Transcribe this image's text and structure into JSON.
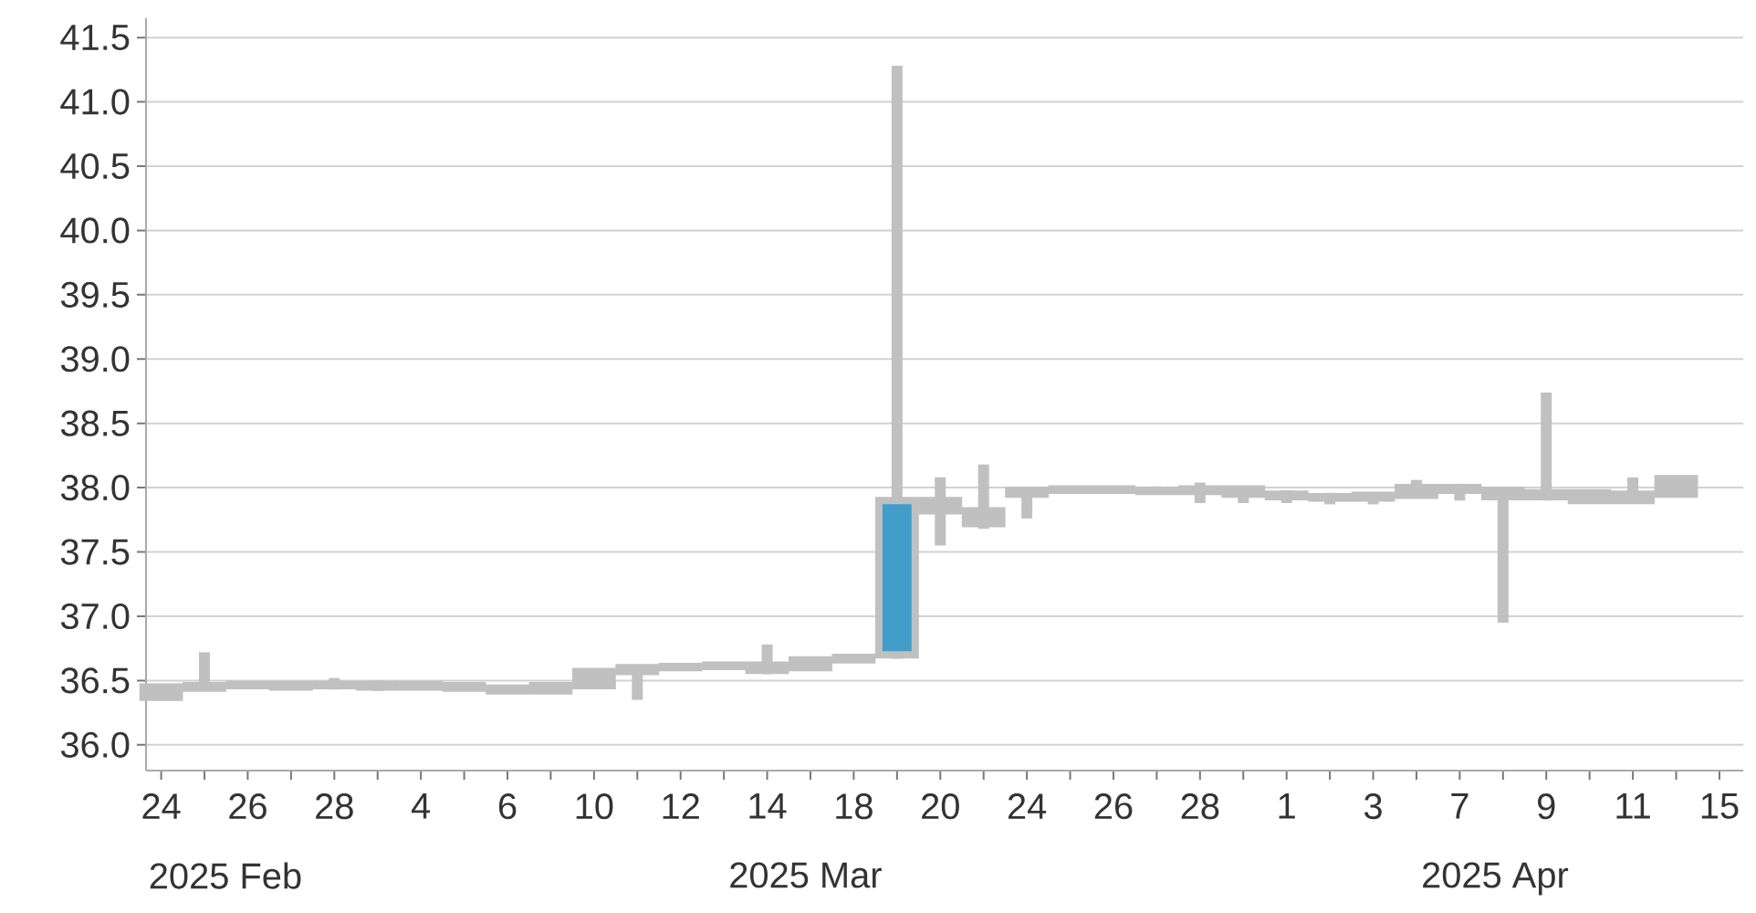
{
  "chart_data": {
    "type": "candlestick",
    "categories": [
      "24",
      null,
      "26",
      null,
      "28",
      null,
      "4",
      null,
      "6",
      null,
      "10",
      null,
      "12",
      null,
      "14",
      null,
      "18",
      null,
      "20",
      null,
      "24",
      null,
      "26",
      null,
      "28",
      null,
      "1",
      null,
      "3",
      null,
      "7",
      null,
      "9",
      null,
      "11",
      null,
      "15"
    ],
    "ohlc": [
      [
        36.37,
        36.47,
        36.35,
        36.45
      ],
      [
        36.44,
        36.72,
        36.42,
        36.46
      ],
      [
        36.46,
        36.48,
        36.44,
        36.47
      ],
      [
        36.45,
        36.48,
        36.44,
        36.47
      ],
      [
        36.46,
        36.52,
        36.43,
        36.47
      ],
      [
        36.45,
        36.5,
        36.42,
        36.47
      ],
      [
        36.45,
        36.48,
        36.43,
        36.47
      ],
      [
        36.44,
        36.47,
        36.42,
        36.46
      ],
      [
        36.42,
        36.46,
        36.4,
        36.44
      ],
      [
        36.42,
        36.47,
        36.4,
        36.46
      ],
      [
        36.46,
        36.59,
        36.44,
        36.57
      ],
      [
        36.57,
        36.61,
        36.35,
        36.6
      ],
      [
        36.6,
        36.62,
        36.58,
        36.61
      ],
      [
        36.61,
        36.63,
        36.59,
        36.62
      ],
      [
        36.58,
        36.78,
        36.55,
        36.62
      ],
      [
        36.6,
        36.68,
        36.58,
        36.66
      ],
      [
        36.66,
        36.7,
        36.64,
        36.68
      ],
      [
        36.7,
        41.28,
        36.67,
        37.9
      ],
      [
        37.82,
        38.08,
        37.55,
        37.9
      ],
      [
        37.72,
        38.18,
        37.68,
        37.82
      ],
      [
        37.95,
        38.0,
        37.76,
        37.98
      ],
      [
        37.98,
        38.0,
        37.96,
        37.99
      ],
      [
        37.98,
        38.01,
        37.96,
        37.99
      ],
      [
        37.97,
        38.01,
        37.95,
        37.98
      ],
      [
        37.97,
        38.04,
        37.88,
        37.99
      ],
      [
        37.95,
        38.01,
        37.88,
        37.99
      ],
      [
        37.93,
        37.98,
        37.88,
        37.95
      ],
      [
        37.92,
        37.96,
        37.87,
        37.93
      ],
      [
        37.92,
        37.96,
        37.87,
        37.94
      ],
      [
        37.94,
        38.06,
        37.92,
        38.0
      ],
      [
        37.98,
        38.03,
        37.9,
        38.0
      ],
      [
        37.93,
        38.0,
        36.95,
        37.98
      ],
      [
        37.93,
        38.74,
        37.9,
        37.96
      ],
      [
        37.9,
        37.98,
        37.88,
        37.96
      ],
      [
        37.9,
        38.08,
        37.88,
        37.95
      ],
      [
        37.95,
        38.08,
        37.94,
        38.07
      ],
      null
    ],
    "color": "#c0c0c0",
    "colors": [
      "#c0c0c0",
      "#c0c0c0",
      "#c0c0c0",
      "#c0c0c0",
      "#c0c0c0",
      "#c0c0c0",
      "#c0c0c0",
      "#c0c0c0",
      "#c0c0c0",
      "#c0c0c0",
      "#c0c0c0",
      "#c0c0c0",
      "#c0c0c0",
      "#c0c0c0",
      "#c0c0c0",
      "#c0c0c0",
      "#c0c0c0",
      "#429dca",
      "#c0c0c0",
      "#c0c0c0",
      "#c0c0c0",
      "#c0c0c0",
      "#c0c0c0",
      "#c0c0c0",
      "#c0c0c0",
      "#c0c0c0",
      "#c0c0c0",
      "#c0c0c0",
      "#c0c0c0",
      "#c0c0c0",
      "#c0c0c0",
      "#c0c0c0",
      "#c0c0c0",
      "#c0c0c0",
      "#c0c0c0",
      "#c0c0c0",
      "#c0c0c0"
    ],
    "ylim": [
      35.8,
      41.65
    ],
    "yticks": [
      {
        "value": 36,
        "label": "36.0"
      },
      36.5,
      {
        "value": 37,
        "label": "37.0"
      },
      37.5,
      {
        "value": 38,
        "label": "38.0"
      },
      38.5,
      {
        "value": 39,
        "label": "39.0"
      },
      39.5,
      {
        "value": 40,
        "label": "40.0"
      },
      40.5,
      {
        "value": 41,
        "label": "41.0"
      },
      41.5
    ],
    "grid": "y",
    "annotations": [
      "2025 Feb",
      "2025 Mar",
      "2025 Apr"
    ]
  }
}
